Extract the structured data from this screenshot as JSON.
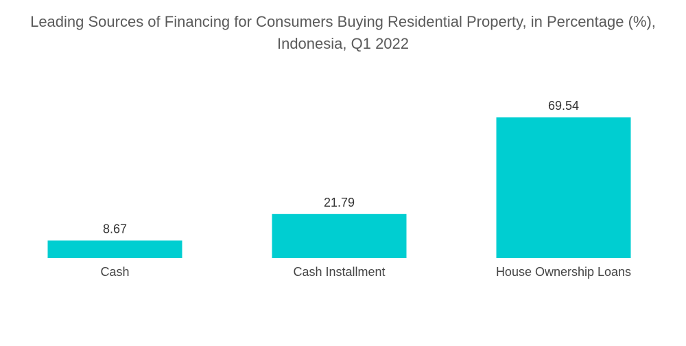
{
  "chart_data": {
    "type": "bar",
    "title": "Leading Sources of Financing for Consumers Buying Residential Property, in Percentage (%), Indonesia, Q1 2022",
    "categories": [
      "Cash",
      "Cash Installment",
      "House Ownership Loans"
    ],
    "values": [
      8.67,
      21.79,
      69.54
    ],
    "value_labels": [
      "8.67",
      "21.79",
      "69.54"
    ],
    "xlabel": "",
    "ylabel": "",
    "ylim": [
      0,
      69.54
    ],
    "grid": false,
    "legend": "none",
    "bar_color": "#00CED1"
  }
}
